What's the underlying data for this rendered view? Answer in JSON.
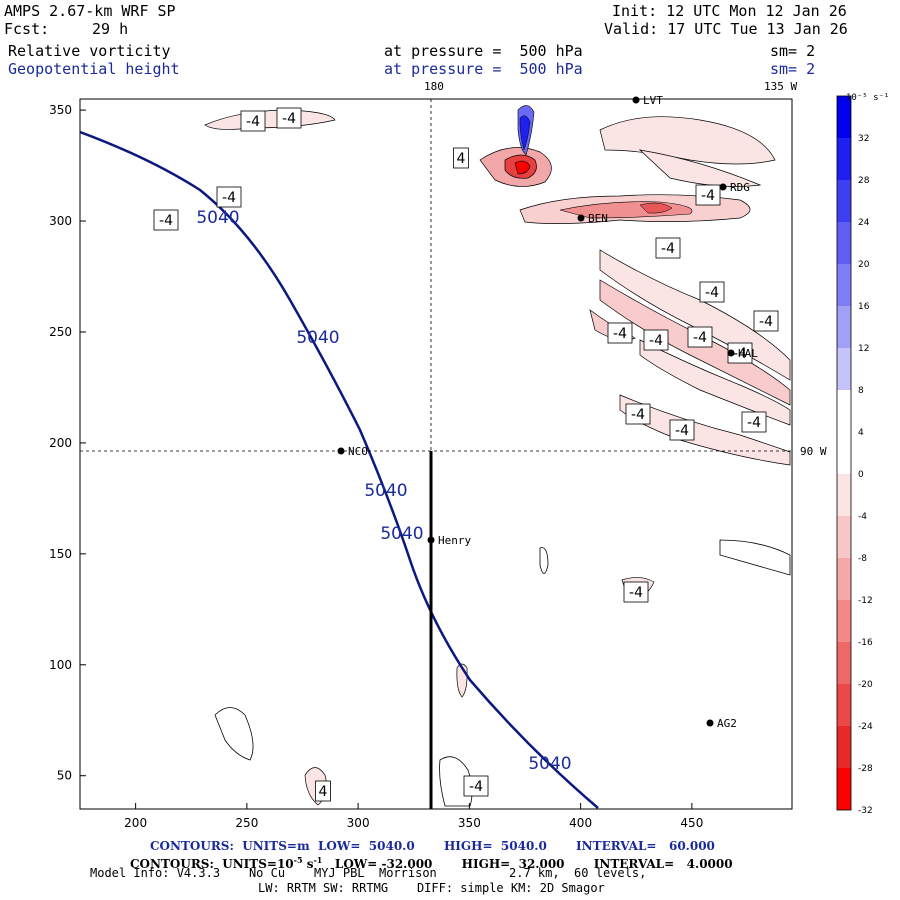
{
  "header": {
    "model": "AMPS 2.67-km WRF SP",
    "init": "Init: 12 UTC Mon 12 Jan 26",
    "fcst_label": "Fcst:",
    "fcst_value": "29 h",
    "valid": "Valid: 17 UTC Tue 13 Jan 26",
    "field1": "Relative vorticity",
    "field1_level": "at pressure =  500 hPa",
    "field1_sm": "sm= 2",
    "field2": "Geopotential height",
    "field2_level": "at pressure =  500 hPa",
    "field2_sm": "sm= 2"
  },
  "map_labels": {
    "lon_180": "180",
    "lon_135w": "135 W",
    "lon_90w": "90 W",
    "stations": [
      "LVT",
      "RDG",
      "BEN",
      "HAL",
      "NCO",
      "Henry",
      "AG2"
    ]
  },
  "footer": {
    "line1": "CONTOURS:  UNITS=m  LOW=  5040.0       HIGH=  5040.0       INTERVAL=   60.000",
    "line2_a": "CONTOURS:  UNITS=10",
    "line2_sup": "-5",
    "line2_b": " s",
    "line2_sup2": "-1",
    "line2_c": "   LOW= -32.000       HIGH=  32.000       INTERVAL=   4.0000",
    "line3": "Model Info: V4.3.3    No Cu    MYJ PBL  Morrison          2.7 km,  60 levels,",
    "line4": "LW: RRTM SW: RRTMG    DIFF: simple KM: 2D Smagor"
  },
  "colorbar": {
    "units": "10⁻⁵ s⁻¹",
    "ticks": [
      "32",
      "28",
      "24",
      "20",
      "16",
      "12",
      "8",
      "4",
      "0",
      "-4",
      "-8",
      "-12",
      "-16",
      "-20",
      "-24",
      "-28",
      "-32"
    ],
    "colors": [
      "#0000ee",
      "#1f1ff0",
      "#3e3ef2",
      "#5e5ef4",
      "#7e7ef6",
      "#a0a0f8",
      "#c4c4fa",
      "#ffffff",
      "#ffffff",
      "#fbe4e4",
      "#f8c8c8",
      "#f5a8a8",
      "#f28888",
      "#ef6868",
      "#ec4848",
      "#e92828",
      "#ff0000"
    ]
  },
  "chart_data": {
    "type": "contour-map",
    "xlim": [
      175,
      495
    ],
    "ylim": [
      35,
      355
    ],
    "xticks": [
      200,
      250,
      300,
      350,
      400,
      450
    ],
    "yticks": [
      50,
      100,
      150,
      200,
      250,
      300,
      350
    ],
    "height_contour_label": "5040",
    "height_contour_labels_count": 5,
    "vorticity_labels": [
      "-4",
      "-4",
      "-4",
      "-4",
      "4",
      "-4",
      "-4",
      "-4",
      "-4",
      "-4",
      "-4",
      "-4",
      "-4",
      "-4",
      "-4",
      "-4",
      "-4",
      "4",
      "-4"
    ],
    "cross_section": {
      "x": 335,
      "y_from": 35,
      "y_to": 195
    }
  }
}
